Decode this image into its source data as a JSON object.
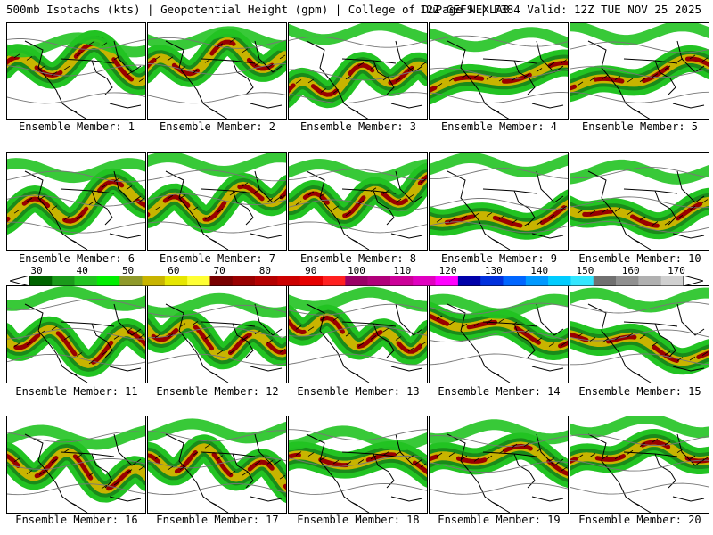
{
  "header": {
    "title_left": "500mb Isotachs (kts) | Geopotential Height (gpm) | College of DuPage NEXLAB",
    "title_right": "12Z GEFS | F384 Valid: 12Z TUE NOV 25 2025"
  },
  "members": [
    "Ensemble Member: 1",
    "Ensemble Member: 2",
    "Ensemble Member: 3",
    "Ensemble Member: 4",
    "Ensemble Member: 5",
    "Ensemble Member: 6",
    "Ensemble Member: 7",
    "Ensemble Member: 8",
    "Ensemble Member: 9",
    "Ensemble Member: 10",
    "Ensemble Member: 11",
    "Ensemble Member: 12",
    "Ensemble Member: 13",
    "Ensemble Member: 14",
    "Ensemble Member: 15",
    "Ensemble Member: 16",
    "Ensemble Member: 17",
    "Ensemble Member: 18",
    "Ensemble Member: 19",
    "Ensemble Member: 20"
  ],
  "colorbar": {
    "labels": [
      "30",
      "40",
      "50",
      "60",
      "70",
      "80",
      "90",
      "100",
      "110",
      "120",
      "130",
      "140",
      "150",
      "160",
      "170"
    ],
    "colors": [
      "#006400",
      "#1a9a1a",
      "#22c322",
      "#00ee00",
      "#8f9a2a",
      "#c8b400",
      "#e6e600",
      "#ffff33",
      "#7a0000",
      "#990000",
      "#b40000",
      "#cc0000",
      "#e60000",
      "#ff2020",
      "#990066",
      "#b0007a",
      "#cc0099",
      "#e000c0",
      "#ff00ff",
      "#0000aa",
      "#0030dd",
      "#0066ff",
      "#0099ff",
      "#00ccff",
      "#33e6ff",
      "#707070",
      "#909090",
      "#b0b0b0",
      "#d0d0d0"
    ]
  },
  "jet_colors": {
    "outer": "#22c322",
    "mid": "#1a8a1a",
    "yellow": "#c8b400",
    "core": "#990000"
  }
}
